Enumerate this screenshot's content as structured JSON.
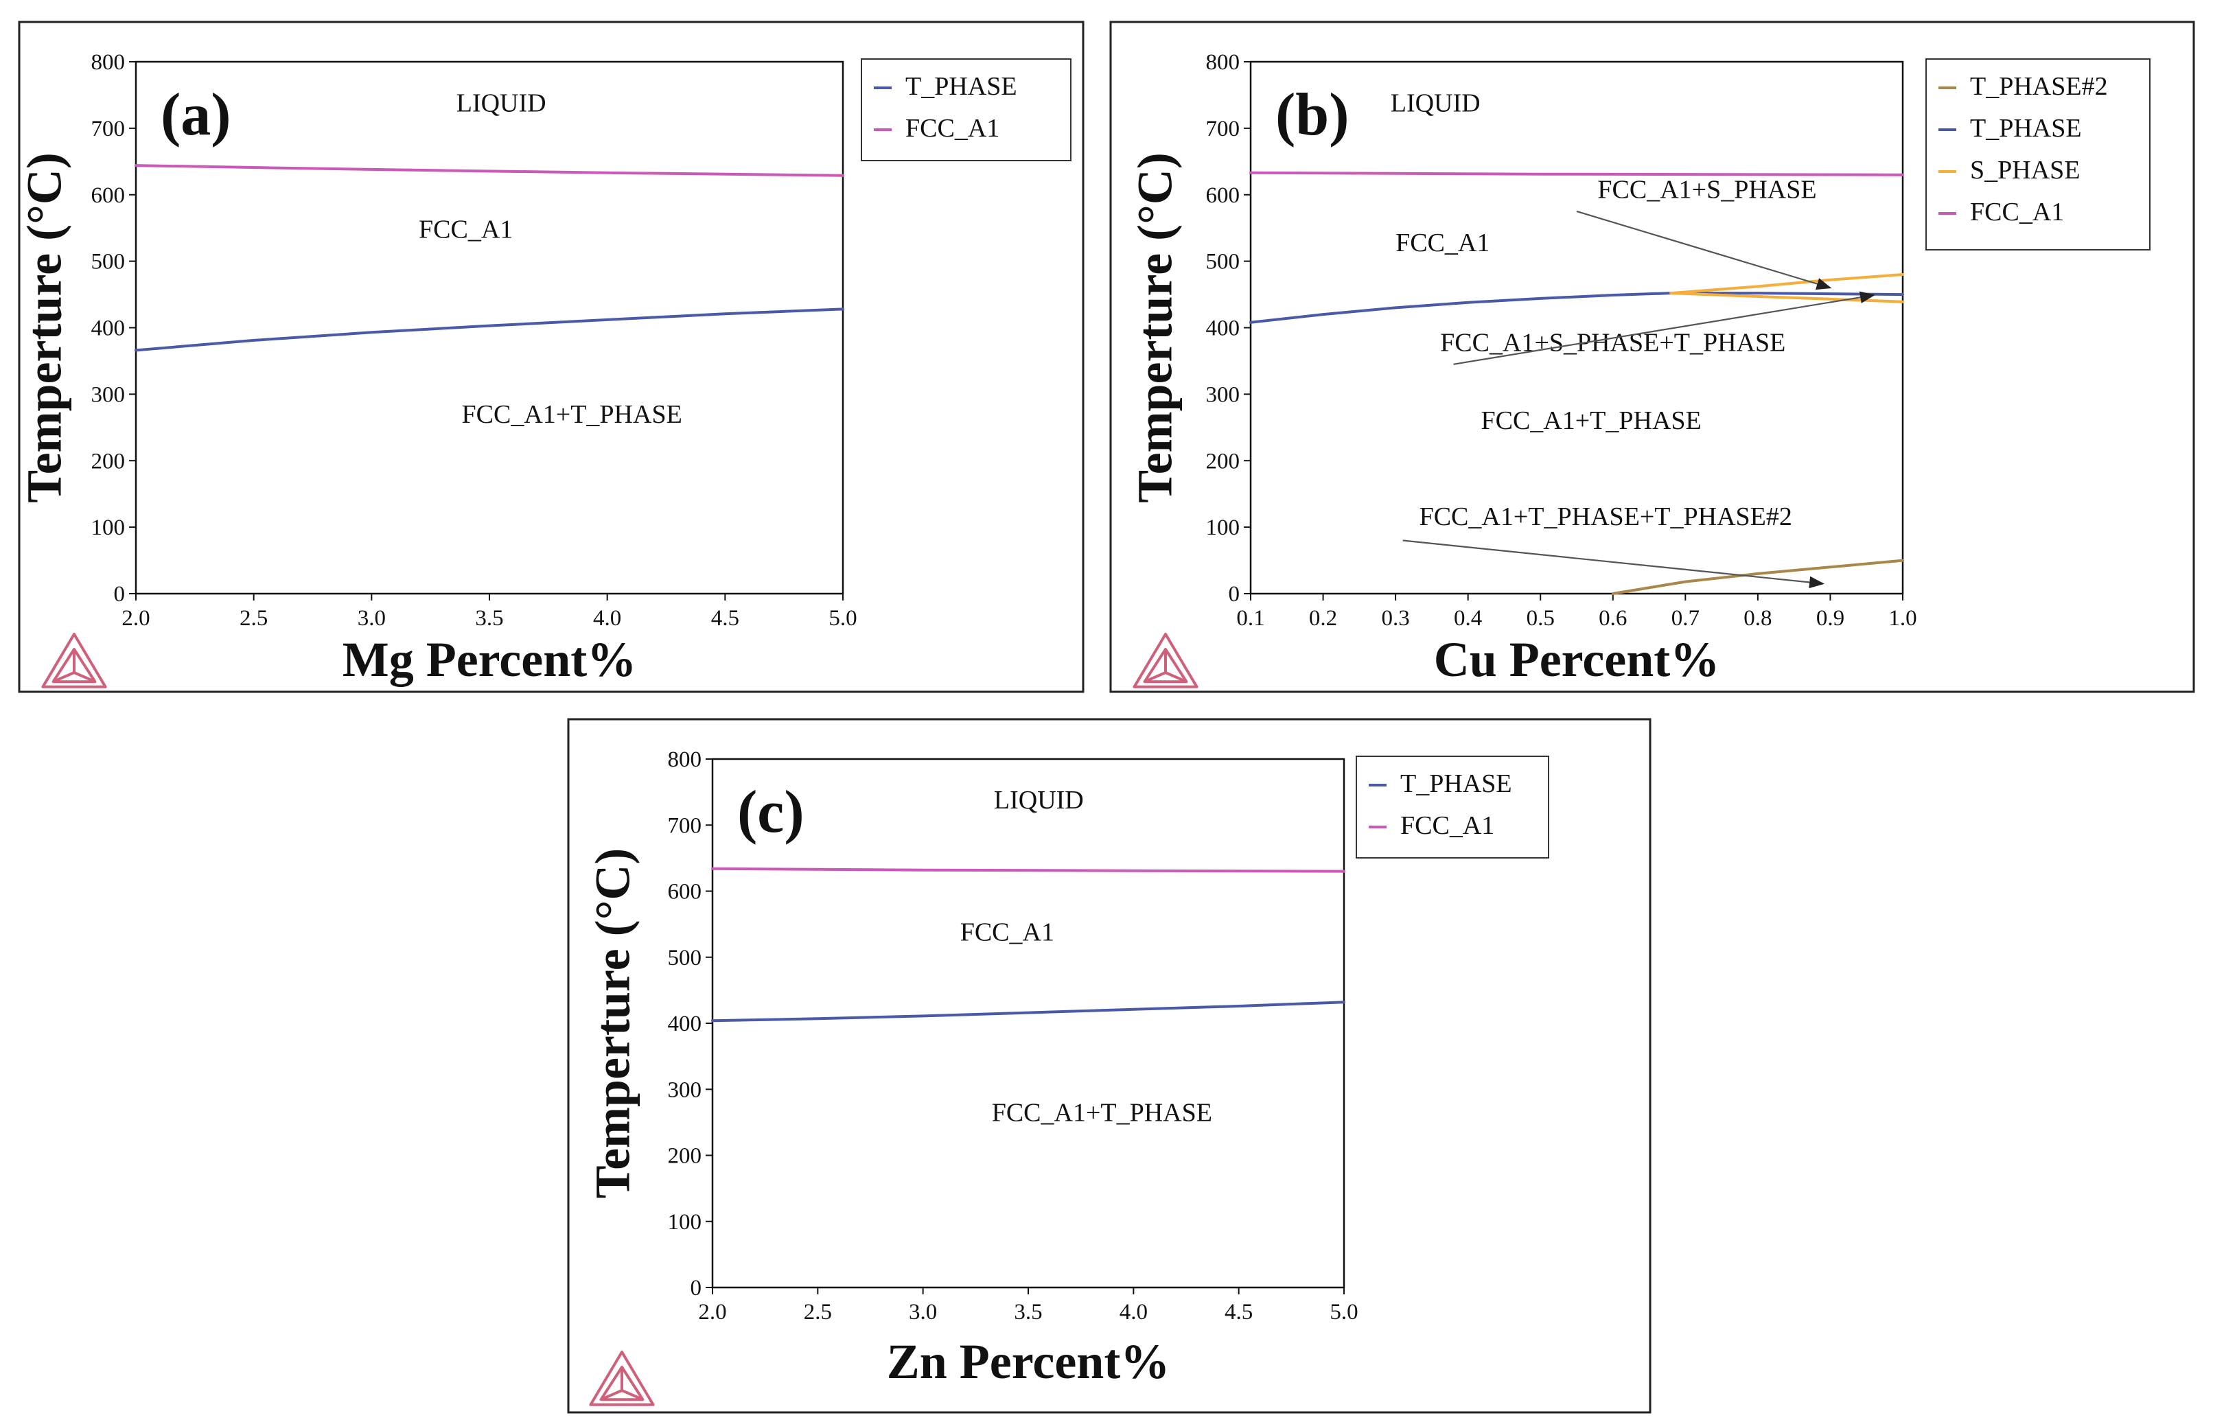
{
  "colors": {
    "t_phase": "#4a5aa8",
    "fcc_a1": "#c85bb8",
    "s_phase": "#f5ae3c",
    "t_phase2": "#a8884a",
    "logo": "#d0607a",
    "frame": "#222222",
    "arrow": "#555555"
  },
  "chart_data": [
    {
      "panel": "(a)",
      "type": "line",
      "xlabel": "Mg Percent%",
      "ylabel": "Temperture (°C)",
      "xlim": [
        2.0,
        5.0
      ],
      "ylim": [
        0,
        800
      ],
      "xticks": [
        "2.0",
        "2.5",
        "3.0",
        "3.5",
        "4.0",
        "4.5",
        "5.0"
      ],
      "yticks": [
        "0",
        "100",
        "200",
        "300",
        "400",
        "500",
        "600",
        "700",
        "800"
      ],
      "legend_position": "outside-right-top",
      "series": [
        {
          "name": "T_PHASE",
          "color_key": "t_phase",
          "x": [
            2.0,
            2.5,
            3.0,
            3.5,
            4.0,
            4.5,
            5.0
          ],
          "y": [
            366,
            381,
            393,
            403,
            412,
            421,
            428
          ]
        },
        {
          "name": "FCC_A1",
          "color_key": "fcc_a1",
          "x": [
            2.0,
            3.0,
            4.0,
            5.0
          ],
          "y": [
            644,
            638,
            633,
            629
          ]
        }
      ],
      "regions": [
        {
          "text": "LIQUID",
          "x": 3.55,
          "y": 725
        },
        {
          "text": "FCC_A1",
          "x": 3.4,
          "y": 535
        },
        {
          "text": "FCC_A1+T_PHASE",
          "x": 3.85,
          "y": 257
        }
      ],
      "arrows": []
    },
    {
      "panel": "(b)",
      "type": "line",
      "xlabel": "Cu Percent%",
      "ylabel": "Temperture (°C)",
      "xlim": [
        0.1,
        1.0
      ],
      "ylim": [
        0,
        800
      ],
      "xticks": [
        "0.1",
        "0.2",
        "0.3",
        "0.4",
        "0.5",
        "0.6",
        "0.7",
        "0.8",
        "0.9",
        "1.0"
      ],
      "yticks": [
        "0",
        "100",
        "200",
        "300",
        "400",
        "500",
        "600",
        "700",
        "800"
      ],
      "legend_position": "outside-right-top",
      "series": [
        {
          "name": "T_PHASE#2",
          "color_key": "t_phase2",
          "x": [
            0.6,
            0.7,
            0.8,
            0.9,
            1.0
          ],
          "y": [
            0,
            18,
            30,
            40,
            50
          ]
        },
        {
          "name": "T_PHASE",
          "color_key": "t_phase",
          "x": [
            0.1,
            0.2,
            0.3,
            0.4,
            0.5,
            0.6,
            0.68,
            0.8,
            0.9,
            1.0
          ],
          "y": [
            408,
            420,
            430,
            438,
            444,
            449,
            452,
            452,
            451,
            450
          ]
        },
        {
          "name": "S_PHASE",
          "color_key": "s_phase",
          "x": [
            0.68,
            0.8,
            0.9,
            1.0
          ],
          "y": [
            452,
            462,
            472,
            480
          ]
        },
        {
          "name": "S_PHASE",
          "color_key": "s_phase",
          "legend": false,
          "x": [
            0.68,
            0.8,
            0.9,
            1.0
          ],
          "y": [
            452,
            447,
            443,
            439
          ]
        },
        {
          "name": "FCC_A1",
          "color_key": "fcc_a1",
          "x": [
            0.1,
            0.5,
            1.0
          ],
          "y": [
            633,
            631,
            630
          ]
        }
      ],
      "regions": [
        {
          "text": "LIQUID",
          "x": 0.355,
          "y": 725
        },
        {
          "text": "FCC_A1",
          "x": 0.365,
          "y": 515
        },
        {
          "text": "FCC_A1+S_PHASE",
          "x": 0.73,
          "y": 595
        },
        {
          "text": "FCC_A1+S_PHASE+T_PHASE",
          "x": 0.6,
          "y": 365
        },
        {
          "text": "FCC_A1+T_PHASE",
          "x": 0.57,
          "y": 248
        },
        {
          "text": "FCC_A1+T_PHASE+T_PHASE#2",
          "x": 0.59,
          "y": 103
        }
      ],
      "arrows": [
        {
          "from": [
            0.55,
            575
          ],
          "to": [
            0.9,
            460
          ]
        },
        {
          "from": [
            0.38,
            345
          ],
          "to": [
            0.96,
            449
          ]
        },
        {
          "from": [
            0.31,
            80
          ],
          "to": [
            0.89,
            15
          ]
        }
      ]
    },
    {
      "panel": "(c)",
      "type": "line",
      "xlabel": "Zn Percent%",
      "ylabel": "Temperture (°C)",
      "xlim": [
        2.0,
        5.0
      ],
      "ylim": [
        0,
        800
      ],
      "xticks": [
        "2.0",
        "2.5",
        "3.0",
        "3.5",
        "4.0",
        "4.5",
        "5.0"
      ],
      "yticks": [
        "0",
        "100",
        "200",
        "300",
        "400",
        "500",
        "600",
        "700",
        "800"
      ],
      "legend_position": "outside-right-top",
      "series": [
        {
          "name": "T_PHASE",
          "color_key": "t_phase",
          "x": [
            2.0,
            2.5,
            3.0,
            3.5,
            4.0,
            4.5,
            5.0
          ],
          "y": [
            404,
            407,
            411,
            416,
            421,
            426,
            432
          ]
        },
        {
          "name": "FCC_A1",
          "color_key": "fcc_a1",
          "x": [
            2.0,
            3.0,
            4.0,
            5.0
          ],
          "y": [
            634,
            632,
            631,
            630
          ]
        }
      ],
      "regions": [
        {
          "text": "LIQUID",
          "x": 3.55,
          "y": 725
        },
        {
          "text": "FCC_A1",
          "x": 3.4,
          "y": 525
        },
        {
          "text": "FCC_A1+T_PHASE",
          "x": 3.85,
          "y": 252
        }
      ],
      "arrows": []
    }
  ]
}
